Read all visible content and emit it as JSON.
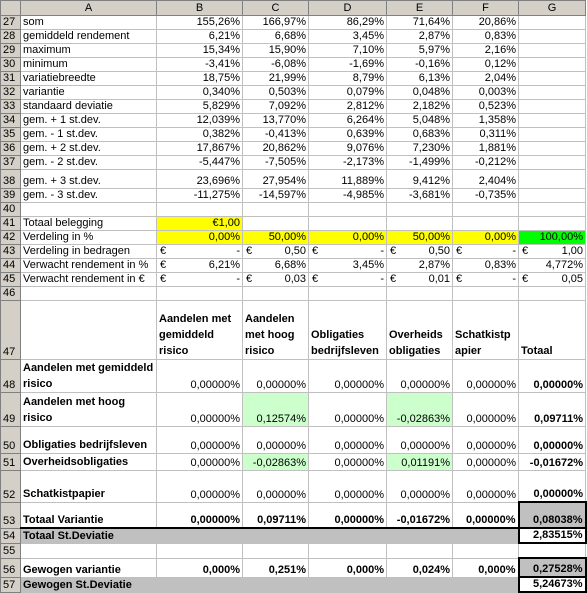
{
  "columns": [
    "A",
    "B",
    "C",
    "D",
    "E",
    "F",
    "G"
  ],
  "stats_rows": [
    {
      "row": "27",
      "label": "som",
      "v": [
        "155,26%",
        "166,97%",
        "86,29%",
        "71,64%",
        "20,86%"
      ]
    },
    {
      "row": "28",
      "label": "gemiddeld rendement",
      "v": [
        "6,21%",
        "6,68%",
        "3,45%",
        "2,87%",
        "0,83%"
      ]
    },
    {
      "row": "29",
      "label": "maximum",
      "v": [
        "15,34%",
        "15,90%",
        "7,10%",
        "5,97%",
        "2,16%"
      ]
    },
    {
      "row": "30",
      "label": "minimum",
      "v": [
        "-3,41%",
        "-6,08%",
        "-1,69%",
        "-0,16%",
        "0,12%"
      ]
    },
    {
      "row": "31",
      "label": "variatiebreedte",
      "v": [
        "18,75%",
        "21,99%",
        "8,79%",
        "6,13%",
        "2,04%"
      ]
    },
    {
      "row": "32",
      "label": "variantie",
      "v": [
        "0,340%",
        "0,503%",
        "0,079%",
        "0,048%",
        "0,003%"
      ]
    },
    {
      "row": "33",
      "label": "standaard deviatie",
      "v": [
        "5,829%",
        "7,092%",
        "2,812%",
        "2,182%",
        "0,523%"
      ]
    },
    {
      "row": "34",
      "label": "gem. + 1 st.dev.",
      "v": [
        "12,039%",
        "13,770%",
        "6,264%",
        "5,048%",
        "1,358%"
      ]
    },
    {
      "row": "35",
      "label": "gem. - 1 st.dev.",
      "v": [
        "0,382%",
        "-0,413%",
        "0,639%",
        "0,683%",
        "0,311%"
      ]
    },
    {
      "row": "36",
      "label": "gem. + 2 st.dev.",
      "v": [
        "17,867%",
        "20,862%",
        "9,076%",
        "7,230%",
        "1,881%"
      ]
    },
    {
      "row": "37",
      "label": "gem. - 2 st.dev.",
      "v": [
        "-5,447%",
        "-7,505%",
        "-2,173%",
        "-1,499%",
        "-0,212%"
      ]
    },
    {
      "row": "38",
      "label": "gem. + 3 st.dev.",
      "v": [
        "23,696%",
        "27,954%",
        "11,889%",
        "9,412%",
        "2,404%"
      ]
    },
    {
      "row": "39",
      "label": "gem. - 3 st.dev.",
      "v": [
        "-11,275%",
        "-14,597%",
        "-4,985%",
        "-3,681%",
        "-0,735%"
      ]
    }
  ],
  "r40": "40",
  "r41": {
    "row": "41",
    "label": "Totaal belegging",
    "b": "€1,00"
  },
  "r42": {
    "row": "42",
    "label": "Verdeling in %",
    "v": [
      "0,00%",
      "50,00%",
      "0,00%",
      "50,00%",
      "0,00%",
      "100,00%"
    ]
  },
  "r43": {
    "row": "43",
    "label": "Verdeling in bedragen",
    "cur": "€",
    "v": [
      "-",
      "0,50",
      "-",
      "0,50",
      "-",
      "1,00"
    ]
  },
  "r44": {
    "row": "44",
    "label": "Verwacht rendement in %",
    "cur": "€",
    "v": [
      "6,21%",
      "6,68%",
      "3,45%",
      "2,87%",
      "0,83%",
      "4,772%"
    ]
  },
  "r45": {
    "row": "45",
    "label": "Verwacht rendement in €",
    "cur": "€",
    "v": [
      "-",
      "0,03",
      "-",
      "0,01",
      "-",
      "0,05"
    ]
  },
  "r46": "46",
  "r47": {
    "row": "47",
    "h": [
      "Aandelen met gemiddeld risico",
      "Aandelen met hoog risico",
      "Obligaties bedrijfsleven",
      "Overheids obligaties",
      "Schatkistp apier",
      "Totaal"
    ]
  },
  "matrix": [
    {
      "row": "48",
      "label": "Aandelen met gemiddeld risico",
      "v": [
        "0,00000%",
        "0,00000%",
        "0,00000%",
        "0,00000%",
        "0,00000%",
        "0,00000%"
      ]
    },
    {
      "row": "49",
      "label": "Aandelen met hoog risico",
      "v": [
        "0,00000%",
        "0,12574%",
        "0,00000%",
        "-0,02863%",
        "0,00000%",
        "0,09711%"
      ]
    },
    {
      "row": "50",
      "label": "Obligaties bedrijfsleven",
      "v": [
        "",
        "",
        "",
        "",
        "",
        ""
      ]
    },
    {
      "row": "51",
      "label": "Overheidsobligaties",
      "v": [
        "0,00000%",
        "-0,02863%",
        "0,00000%",
        "0,01191%",
        "0,00000%",
        "-0,01672%"
      ]
    },
    {
      "row": "52",
      "label": "Schatkistpapier",
      "v": [
        "0,00000%",
        "0,00000%",
        "0,00000%",
        "0,00000%",
        "0,00000%",
        "0,00000%"
      ]
    }
  ],
  "r50_vals": [
    "0,00000%",
    "0,00000%",
    "0,00000%",
    "0,00000%",
    "0,00000%",
    "0,00000%"
  ],
  "r53": {
    "row": "53",
    "label": "Totaal Variantie",
    "v": [
      "0,00000%",
      "0,09711%",
      "0,00000%",
      "-0,01672%",
      "0,00000%",
      "0,08038%"
    ]
  },
  "r54": {
    "row": "54",
    "label": "Totaal St.Deviatie",
    "g": "2,83515%"
  },
  "r55": "55",
  "r56": {
    "row": "56",
    "label": "Gewogen variantie",
    "v": [
      "0,000%",
      "0,251%",
      "0,000%",
      "0,024%",
      "0,000%",
      "0,27528%"
    ]
  },
  "r57": {
    "row": "57",
    "label": "Gewogen St.Deviatie",
    "g": "5,24673%"
  }
}
